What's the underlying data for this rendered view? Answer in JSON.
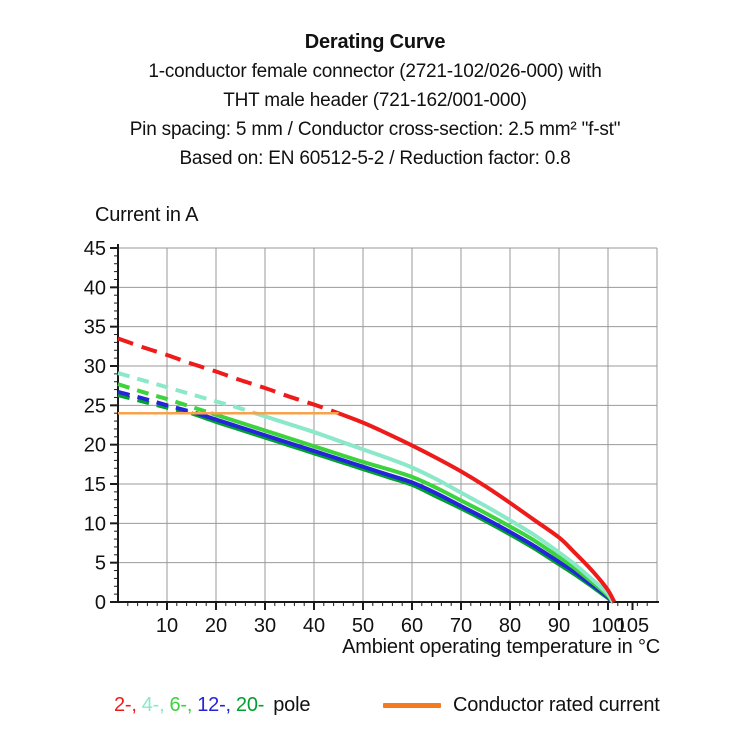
{
  "header": {
    "title": "Derating Curve",
    "subtitle_lines": [
      "1-conductor female connector (2721-102/026-000) with",
      "THT male header (721-162/001-000)",
      "Pin spacing: 5 mm / Conductor cross-section: 2.5 mm² \"f-st\"",
      "Based on: EN 60512-5-2 / Reduction factor: 0.8"
    ]
  },
  "chart_data": {
    "type": "line",
    "title": "Derating Curve",
    "ylabel": "Current in A",
    "xlabel": "Ambient operating temperature in °C",
    "xlim": [
      0,
      110
    ],
    "ylim": [
      0,
      45
    ],
    "x_tick_labels": [
      10,
      20,
      30,
      40,
      50,
      60,
      70,
      80,
      90,
      100,
      105
    ],
    "y_tick_labels": [
      0,
      5,
      10,
      15,
      20,
      25,
      30,
      35,
      40,
      45
    ],
    "x_gridlines_every": 10,
    "y_gridlines_every": 5,
    "grid": true,
    "grid_color": "#999999",
    "axis_color": "#1a1a1a",
    "legend_position": "bottom",
    "dashed_note": "curves dashed above conductor rated current (24 A), solid below",
    "series": [
      {
        "name": "20-pole",
        "color": "#00A030",
        "solid_from": 15,
        "points": [
          [
            0,
            26.3
          ],
          [
            5,
            25.5
          ],
          [
            10,
            24.7
          ],
          [
            15,
            24.0
          ],
          [
            20,
            22.9
          ],
          [
            25,
            21.9
          ],
          [
            30,
            20.9
          ],
          [
            35,
            19.9
          ],
          [
            40,
            18.9
          ],
          [
            45,
            17.9
          ],
          [
            50,
            16.9
          ],
          [
            55,
            15.9
          ],
          [
            60,
            14.9
          ],
          [
            65,
            13.4
          ],
          [
            70,
            11.9
          ],
          [
            75,
            10.3
          ],
          [
            80,
            8.6
          ],
          [
            85,
            6.8
          ],
          [
            90,
            4.8
          ],
          [
            93,
            3.6
          ],
          [
            96,
            2.3
          ],
          [
            98,
            1.4
          ],
          [
            100,
            0.5
          ],
          [
            101.2,
            0
          ]
        ]
      },
      {
        "name": "12-pole",
        "color": "#2424D8",
        "solid_from": 16,
        "points": [
          [
            0,
            26.7
          ],
          [
            5,
            25.9
          ],
          [
            10,
            25.0
          ],
          [
            16,
            24.0
          ],
          [
            20,
            23.2
          ],
          [
            25,
            22.2
          ],
          [
            30,
            21.2
          ],
          [
            35,
            20.2
          ],
          [
            40,
            19.2
          ],
          [
            45,
            18.2
          ],
          [
            50,
            17.2
          ],
          [
            55,
            16.2
          ],
          [
            60,
            15.2
          ],
          [
            65,
            13.8
          ],
          [
            70,
            12.2
          ],
          [
            75,
            10.6
          ],
          [
            80,
            8.9
          ],
          [
            85,
            7.1
          ],
          [
            90,
            5.1
          ],
          [
            93,
            3.9
          ],
          [
            96,
            2.5
          ],
          [
            98,
            1.6
          ],
          [
            100,
            0.6
          ],
          [
            100.9,
            0
          ]
        ]
      },
      {
        "name": "6-pole",
        "color": "#3DD33D",
        "solid_from": 19,
        "points": [
          [
            0,
            27.7
          ],
          [
            5,
            26.7
          ],
          [
            10,
            25.8
          ],
          [
            14,
            25.0
          ],
          [
            19,
            24.0
          ],
          [
            25,
            22.8
          ],
          [
            30,
            21.8
          ],
          [
            35,
            20.8
          ],
          [
            40,
            19.8
          ],
          [
            45,
            18.8
          ],
          [
            50,
            17.8
          ],
          [
            55,
            16.9
          ],
          [
            60,
            15.9
          ],
          [
            65,
            14.5
          ],
          [
            70,
            12.9
          ],
          [
            75,
            11.3
          ],
          [
            80,
            9.6
          ],
          [
            85,
            7.8
          ],
          [
            90,
            5.7
          ],
          [
            93,
            4.4
          ],
          [
            96,
            2.9
          ],
          [
            98,
            1.9
          ],
          [
            100,
            0.8
          ],
          [
            101,
            0
          ]
        ]
      },
      {
        "name": "4-pole",
        "color": "#8BE8C8",
        "solid_from": 28,
        "points": [
          [
            0,
            29.1
          ],
          [
            5,
            28.2
          ],
          [
            10,
            27.3
          ],
          [
            15,
            26.4
          ],
          [
            20,
            25.5
          ],
          [
            24,
            24.8
          ],
          [
            28,
            24.0
          ],
          [
            30,
            23.6
          ],
          [
            35,
            22.6
          ],
          [
            40,
            21.6
          ],
          [
            45,
            20.5
          ],
          [
            50,
            19.4
          ],
          [
            55,
            18.3
          ],
          [
            60,
            17.1
          ],
          [
            65,
            15.6
          ],
          [
            70,
            13.9
          ],
          [
            75,
            12.2
          ],
          [
            80,
            10.4
          ],
          [
            85,
            8.5
          ],
          [
            90,
            6.3
          ],
          [
            93,
            4.9
          ],
          [
            96,
            3.3
          ],
          [
            98,
            2.2
          ],
          [
            100,
            1.0
          ],
          [
            101,
            0
          ]
        ]
      },
      {
        "name": "2-pole",
        "color": "#EE1B1B",
        "solid_from": 45,
        "points": [
          [
            0,
            33.5
          ],
          [
            5,
            32.4
          ],
          [
            10,
            31.4
          ],
          [
            15,
            30.3
          ],
          [
            20,
            29.3
          ],
          [
            25,
            28.2
          ],
          [
            30,
            27.2
          ],
          [
            35,
            26.1
          ],
          [
            40,
            25.1
          ],
          [
            45,
            24.0
          ],
          [
            50,
            22.8
          ],
          [
            55,
            21.4
          ],
          [
            60,
            19.9
          ],
          [
            65,
            18.3
          ],
          [
            70,
            16.6
          ],
          [
            75,
            14.7
          ],
          [
            80,
            12.6
          ],
          [
            85,
            10.4
          ],
          [
            90,
            8.2
          ],
          [
            93,
            6.4
          ],
          [
            96,
            4.5
          ],
          [
            98,
            3.1
          ],
          [
            100,
            1.5
          ],
          [
            101.3,
            0
          ]
        ]
      }
    ],
    "rated_current_line": {
      "value": 24,
      "from_x": 0,
      "to_x": 45,
      "color": "#F9A24B"
    }
  },
  "legend": {
    "pole_items": [
      {
        "label": "2-",
        "color": "#EE1B1B"
      },
      {
        "label": "4-",
        "color": "#8BE8C8"
      },
      {
        "label": "6-",
        "color": "#3DD33D"
      },
      {
        "label": "12-",
        "color": "#2424D8"
      },
      {
        "label": "20-",
        "color": "#00A030"
      }
    ],
    "pole_suffix": "pole",
    "rated_label": "Conductor rated current",
    "rated_color": "#F4791F"
  }
}
